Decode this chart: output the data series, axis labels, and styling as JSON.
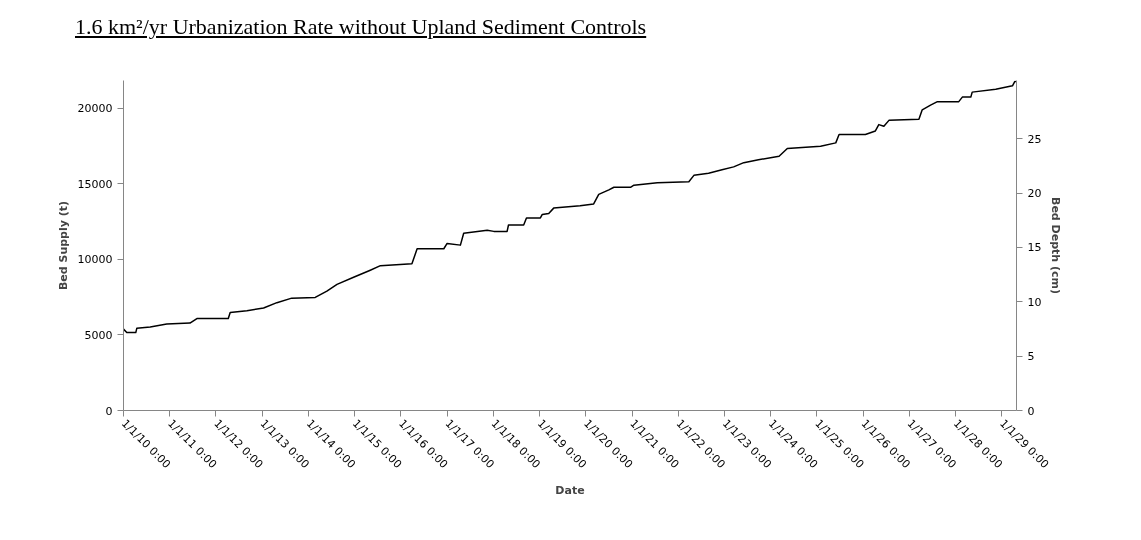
{
  "chart_data": {
    "type": "line",
    "title": "1.6 km²/yr Urbanization Rate without Upland Sediment Controls",
    "xlabel": "Date",
    "ylabel": "Bed Supply (t)",
    "y2label": "Bed Depth (cm)",
    "series": [
      {
        "color": "#000000",
        "x": [
          "2010-01-01",
          "2010-01-27",
          "2010-04-08",
          "2010-04-16",
          "2010-07-31",
          "2010-12-09",
          "2011-06-10",
          "2011-08-04",
          "2012-04-08",
          "2012-04-23",
          "2012-09-02",
          "2013-01-12",
          "2013-04-27",
          "2013-08-22",
          "2014-02-24",
          "2014-05-27",
          "2014-08-15",
          "2014-12-24",
          "2015-05-05",
          "2015-07-24",
          "2016-03-29",
          "2016-05-09",
          "2016-12-06",
          "2017-01-01",
          "2017-04-16",
          "2017-05-12",
          "2017-11-14",
          "2018-01-05",
          "2018-04-20",
          "2018-05-01",
          "2018-08-29",
          "2018-09-20",
          "2019-01-08",
          "2019-01-23",
          "2019-03-15",
          "2019-04-23",
          "2019-11-18",
          "2020-03-04",
          "2020-04-13",
          "2020-07-02",
          "2020-08-11",
          "2020-12-20",
          "2021-01-16",
          "2021-07-20",
          "2022-03-26",
          "2022-05-05",
          "2022-08-29",
          "2022-12-13",
          "2023-03-15",
          "2023-06-03",
          "2023-09-27",
          "2024-03-08",
          "2024-05-12",
          "2025-01-30",
          "2025-05-30",
          "2025-06-25",
          "2026-01-19",
          "2026-04-08",
          "2026-05-05",
          "2026-06-14",
          "2026-07-24",
          "2027-03-18",
          "2027-04-13",
          "2027-06-18",
          "2027-08-11",
          "2028-01-27",
          "2028-02-24",
          "2028-05-01",
          "2028-05-12",
          "2028-11-14",
          "2029-03-26",
          "2029-04-13",
          "2029-04-27"
        ],
        "values": [
          5390,
          5160,
          5160,
          5440,
          5530,
          5720,
          5790,
          6090,
          6090,
          6490,
          6600,
          6790,
          7140,
          7440,
          7490,
          7910,
          8350,
          8820,
          9290,
          9590,
          9710,
          10710,
          10710,
          11060,
          10950,
          11740,
          11930,
          11860,
          11860,
          12280,
          12280,
          12750,
          12750,
          12980,
          13050,
          13400,
          13560,
          13680,
          14310,
          14610,
          14780,
          14780,
          14920,
          15080,
          15150,
          15570,
          15710,
          15940,
          16130,
          16410,
          16600,
          16830,
          17350,
          17490,
          17720,
          18280,
          18280,
          18510,
          18930,
          18820,
          19210,
          19280,
          19910,
          20220,
          20450,
          20450,
          20750,
          20750,
          21080,
          21270,
          21500,
          21780,
          21780
        ]
      }
    ],
    "xlim": [
      "2010-01-01",
      "2029-04-27"
    ],
    "xticks": [
      {
        "value": "2010-01-01",
        "label": "1/1/10 0:00"
      },
      {
        "value": "2011-01-01",
        "label": "1/1/11 0:00"
      },
      {
        "value": "2012-01-01",
        "label": "1/1/12 0:00"
      },
      {
        "value": "2013-01-01",
        "label": "1/1/13 0:00"
      },
      {
        "value": "2014-01-01",
        "label": "1/1/14 0:00"
      },
      {
        "value": "2015-01-01",
        "label": "1/1/15 0:00"
      },
      {
        "value": "2016-01-01",
        "label": "1/1/16 0:00"
      },
      {
        "value": "2017-01-01",
        "label": "1/1/17 0:00"
      },
      {
        "value": "2018-01-01",
        "label": "1/1/18 0:00"
      },
      {
        "value": "2019-01-01",
        "label": "1/1/19 0:00"
      },
      {
        "value": "2020-01-01",
        "label": "1/1/20 0:00"
      },
      {
        "value": "2021-01-01",
        "label": "1/1/21 0:00"
      },
      {
        "value": "2022-01-01",
        "label": "1/1/22 0:00"
      },
      {
        "value": "2023-01-01",
        "label": "1/1/23 0:00"
      },
      {
        "value": "2024-01-01",
        "label": "1/1/24 0:00"
      },
      {
        "value": "2025-01-01",
        "label": "1/1/25 0:00"
      },
      {
        "value": "2026-01-01",
        "label": "1/1/26 0:00"
      },
      {
        "value": "2027-01-01",
        "label": "1/1/27 0:00"
      },
      {
        "value": "2028-01-01",
        "label": "1/1/28 0:00"
      },
      {
        "value": "2029-01-01",
        "label": "1/1/29 0:00"
      }
    ],
    "ylim": [
      0,
      21850
    ],
    "yticks": [
      0,
      5000,
      10000,
      15000,
      20000
    ],
    "y2lim": [
      0,
      30.35
    ],
    "y2ticks": [
      0,
      5,
      10,
      15,
      20,
      25
    ],
    "grid": false,
    "marker": "none",
    "line_style": "solid"
  }
}
